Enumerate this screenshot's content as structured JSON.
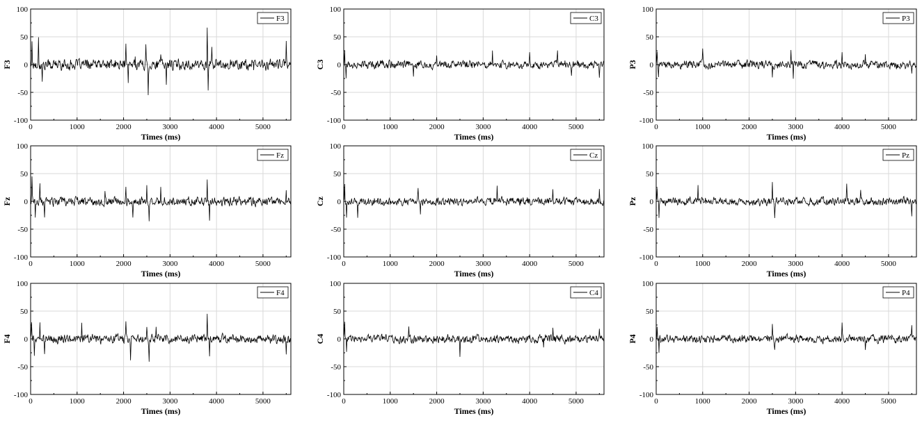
{
  "figure": {
    "background": "#ffffff",
    "trace_color": "#000000",
    "grid_color": "#d9d9d9"
  },
  "chart_data": [
    {
      "type": "line",
      "channel": "F3",
      "legend": "F3",
      "ylabel": "F3",
      "xlabel": "Times (ms)",
      "xlim": [
        0,
        5600
      ],
      "ylim": [
        -100,
        100
      ],
      "xticks": [
        0,
        1000,
        2000,
        3000,
        4000,
        5000
      ],
      "yticks": [
        100,
        50,
        0,
        -50,
        -100
      ],
      "grid": true,
      "legend_position": "top-right",
      "noise_amplitude": 12,
      "spikes": [
        [
          30,
          40
        ],
        [
          170,
          45
        ],
        [
          250,
          -30
        ],
        [
          2050,
          38
        ],
        [
          2100,
          -35
        ],
        [
          2250,
          25
        ],
        [
          2480,
          28
        ],
        [
          2530,
          -48
        ],
        [
          2800,
          20
        ],
        [
          2920,
          -35
        ],
        [
          3000,
          15
        ],
        [
          3800,
          70
        ],
        [
          3820,
          -45
        ],
        [
          3900,
          40
        ],
        [
          4300,
          15
        ],
        [
          4800,
          -20
        ],
        [
          5500,
          35
        ]
      ]
    },
    {
      "type": "line",
      "channel": "C3",
      "legend": "C3",
      "ylabel": "C3",
      "xlabel": "Times (ms)",
      "xlim": [
        0,
        5600
      ],
      "ylim": [
        -100,
        100
      ],
      "xticks": [
        0,
        1000,
        2000,
        3000,
        4000,
        5000
      ],
      "yticks": [
        100,
        50,
        0,
        -50,
        -100
      ],
      "grid": true,
      "legend_position": "top-right",
      "noise_amplitude": 9,
      "spikes": [
        [
          20,
          25
        ],
        [
          50,
          -25
        ],
        [
          1500,
          -20
        ],
        [
          2000,
          20
        ],
        [
          3200,
          28
        ],
        [
          4000,
          22
        ],
        [
          4600,
          28
        ],
        [
          4900,
          -20
        ],
        [
          5500,
          -22
        ]
      ]
    },
    {
      "type": "line",
      "channel": "P3",
      "legend": "P3",
      "ylabel": "P3",
      "xlabel": "Times (ms)",
      "xlim": [
        0,
        5600
      ],
      "ylim": [
        -100,
        100
      ],
      "xticks": [
        0,
        1000,
        2000,
        3000,
        4000,
        5000
      ],
      "yticks": [
        100,
        50,
        0,
        -50,
        -100
      ],
      "grid": true,
      "legend_position": "top-right",
      "noise_amplitude": 9,
      "spikes": [
        [
          20,
          25
        ],
        [
          50,
          -22
        ],
        [
          1000,
          22
        ],
        [
          2500,
          -25
        ],
        [
          2900,
          32
        ],
        [
          2950,
          -28
        ],
        [
          4000,
          25
        ],
        [
          4500,
          22
        ],
        [
          5500,
          -20
        ]
      ]
    },
    {
      "type": "line",
      "channel": "Fz",
      "legend": "Fz",
      "ylabel": "Fz",
      "xlabel": "Times (ms)",
      "xlim": [
        0,
        5600
      ],
      "ylim": [
        -100,
        100
      ],
      "xticks": [
        0,
        1000,
        2000,
        3000,
        4000,
        5000
      ],
      "yticks": [
        100,
        50,
        0,
        -50,
        -100
      ],
      "grid": true,
      "legend_position": "top-right",
      "noise_amplitude": 10,
      "spikes": [
        [
          30,
          40
        ],
        [
          100,
          -30
        ],
        [
          200,
          30
        ],
        [
          300,
          -32
        ],
        [
          1600,
          28
        ],
        [
          2050,
          30
        ],
        [
          2200,
          -25
        ],
        [
          2500,
          28
        ],
        [
          2550,
          -35
        ],
        [
          2800,
          25
        ],
        [
          3800,
          45
        ],
        [
          3850,
          -30
        ],
        [
          5500,
          20
        ]
      ]
    },
    {
      "type": "line",
      "channel": "Cz",
      "legend": "Cz",
      "ylabel": "Cz",
      "xlabel": "Times (ms)",
      "xlim": [
        0,
        5600
      ],
      "ylim": [
        -100,
        100
      ],
      "xticks": [
        0,
        1000,
        2000,
        3000,
        4000,
        5000
      ],
      "yticks": [
        100,
        50,
        0,
        -50,
        -100
      ],
      "grid": true,
      "legend_position": "top-right",
      "noise_amplitude": 9,
      "spikes": [
        [
          20,
          28
        ],
        [
          60,
          -28
        ],
        [
          300,
          -30
        ],
        [
          1600,
          25
        ],
        [
          1650,
          -28
        ],
        [
          3300,
          25
        ],
        [
          4500,
          22
        ],
        [
          5500,
          20
        ]
      ]
    },
    {
      "type": "line",
      "channel": "Pz",
      "legend": "Pz",
      "ylabel": "Pz",
      "xlabel": "Times (ms)",
      "xlim": [
        0,
        5600
      ],
      "ylim": [
        -100,
        100
      ],
      "xticks": [
        0,
        1000,
        2000,
        3000,
        4000,
        5000
      ],
      "yticks": [
        100,
        50,
        0,
        -50,
        -100
      ],
      "grid": true,
      "legend_position": "top-right",
      "noise_amplitude": 9,
      "spikes": [
        [
          20,
          22
        ],
        [
          60,
          -25
        ],
        [
          900,
          25
        ],
        [
          2500,
          35
        ],
        [
          2550,
          -30
        ],
        [
          4100,
          25
        ],
        [
          4400,
          22
        ],
        [
          5500,
          -22
        ]
      ]
    },
    {
      "type": "line",
      "channel": "F4",
      "legend": "F4",
      "ylabel": "F4",
      "xlabel": "Times (ms)",
      "xlim": [
        0,
        5600
      ],
      "ylim": [
        -100,
        100
      ],
      "xticks": [
        0,
        1000,
        2000,
        3000,
        4000,
        5000
      ],
      "yticks": [
        100,
        50,
        0,
        -50,
        -100
      ],
      "grid": true,
      "legend_position": "top-right",
      "noise_amplitude": 10,
      "spikes": [
        [
          20,
          35
        ],
        [
          80,
          -30
        ],
        [
          200,
          30
        ],
        [
          300,
          -28
        ],
        [
          1100,
          30
        ],
        [
          2050,
          30
        ],
        [
          2150,
          -35
        ],
        [
          2500,
          25
        ],
        [
          2550,
          -45
        ],
        [
          2700,
          25
        ],
        [
          3800,
          42
        ],
        [
          3850,
          -30
        ],
        [
          5500,
          -30
        ]
      ]
    },
    {
      "type": "line",
      "channel": "C4",
      "legend": "C4",
      "ylabel": "C4",
      "xlabel": "Times (ms)",
      "xlim": [
        0,
        5600
      ],
      "ylim": [
        -100,
        100
      ],
      "xticks": [
        0,
        1000,
        2000,
        3000,
        4000,
        5000
      ],
      "yticks": [
        100,
        50,
        0,
        -50,
        -100
      ],
      "grid": true,
      "legend_position": "top-right",
      "noise_amplitude": 9,
      "spikes": [
        [
          20,
          25
        ],
        [
          60,
          -25
        ],
        [
          1400,
          25
        ],
        [
          2500,
          -30
        ],
        [
          4300,
          -22
        ],
        [
          4500,
          25
        ],
        [
          5500,
          20
        ]
      ]
    },
    {
      "type": "line",
      "channel": "P4",
      "legend": "P4",
      "ylabel": "P4",
      "xlabel": "Times (ms)",
      "xlim": [
        0,
        5600
      ],
      "ylim": [
        -100,
        100
      ],
      "xticks": [
        0,
        1000,
        2000,
        3000,
        4000,
        5000
      ],
      "yticks": [
        100,
        50,
        0,
        -50,
        -100
      ],
      "grid": true,
      "legend_position": "top-right",
      "noise_amplitude": 9,
      "spikes": [
        [
          20,
          22
        ],
        [
          60,
          -25
        ],
        [
          2500,
          30
        ],
        [
          2550,
          -20
        ],
        [
          4000,
          25
        ],
        [
          4500,
          -20
        ],
        [
          5500,
          20
        ]
      ]
    }
  ]
}
